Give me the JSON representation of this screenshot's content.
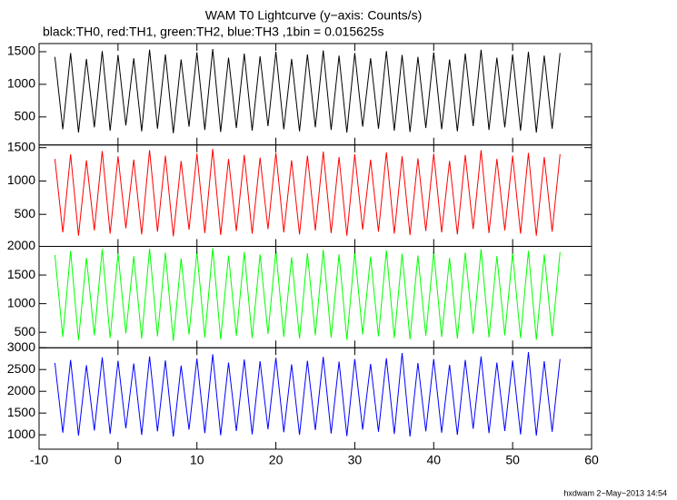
{
  "chart_data": {
    "type": "line",
    "title": "WAM T0 Lightcurve (y−axis: Counts/s)",
    "subtitle": "black:TH0, red:TH1, green:TH2, blue:TH3 ,1bin = 0.015625s",
    "x": [
      -8,
      -7,
      -6,
      -5,
      -4,
      -3,
      -2,
      -1,
      0,
      1,
      2,
      3,
      4,
      5,
      6,
      7,
      8,
      9,
      10,
      11,
      12,
      13,
      14,
      15,
      16,
      17,
      18,
      19,
      20,
      21,
      22,
      23,
      24,
      25,
      26,
      27,
      28,
      29,
      30,
      31,
      32,
      33,
      34,
      35,
      36,
      37,
      38,
      39,
      40,
      41,
      42,
      43,
      44,
      45,
      46,
      47,
      48,
      49,
      50,
      51,
      52,
      53,
      54,
      55,
      56
    ],
    "xlim": [
      -10,
      60
    ],
    "xticks": [
      -10,
      0,
      10,
      20,
      30,
      40,
      50,
      60
    ],
    "series": [
      {
        "color": "#000000",
        "ylim": [
          70,
          1625
        ],
        "yticks": [
          500,
          1000,
          1500
        ],
        "values": [
          1420,
          310,
          1480,
          260,
          1390,
          340,
          1510,
          290,
          1450,
          370,
          1400,
          280,
          1530,
          320,
          1460,
          250,
          1380,
          350,
          1490,
          300,
          1540,
          270,
          1410,
          330,
          1470,
          290,
          1430,
          360,
          1500,
          310,
          1390,
          280,
          1460,
          340,
          1520,
          300,
          1440,
          260,
          1480,
          350,
          1400,
          320,
          1510,
          290,
          1450,
          270,
          1420,
          330,
          1490,
          310,
          1380,
          280,
          1470,
          360,
          1530,
          300,
          1410,
          340,
          1460,
          290,
          1500,
          260,
          1440,
          320,
          1480
        ]
      },
      {
        "color": "#ff0000",
        "ylim": [
          20,
          1540
        ],
        "yticks": [
          500,
          1000,
          1500
        ],
        "values": [
          1330,
          230,
          1400,
          180,
          1310,
          260,
          1450,
          210,
          1370,
          290,
          1320,
          200,
          1460,
          240,
          1380,
          170,
          1300,
          270,
          1410,
          220,
          1480,
          190,
          1330,
          250,
          1390,
          210,
          1350,
          280,
          1420,
          230,
          1310,
          200,
          1380,
          260,
          1440,
          220,
          1360,
          180,
          1400,
          270,
          1320,
          240,
          1430,
          210,
          1370,
          190,
          1340,
          250,
          1410,
          230,
          1300,
          200,
          1390,
          280,
          1460,
          220,
          1330,
          260,
          1380,
          210,
          1420,
          180,
          1360,
          240,
          1400
        ]
      },
      {
        "color": "#00ff00",
        "ylim": [
          230,
          2000
        ],
        "yticks": [
          500,
          1000,
          1500,
          2000
        ],
        "values": [
          1850,
          420,
          1920,
          360,
          1800,
          450,
          1950,
          400,
          1880,
          480,
          1830,
          390,
          1960,
          430,
          1890,
          350,
          1790,
          460,
          1910,
          410,
          1970,
          380,
          1840,
          440,
          1900,
          400,
          1860,
          470,
          1930,
          420,
          1810,
          390,
          1880,
          450,
          1940,
          410,
          1860,
          370,
          1900,
          460,
          1820,
          430,
          1930,
          400,
          1870,
          380,
          1840,
          440,
          1910,
          420,
          1800,
          390,
          1890,
          470,
          1950,
          410,
          1830,
          450,
          1880,
          400,
          1920,
          370,
          1860,
          430,
          1900
        ]
      },
      {
        "color": "#0000ff",
        "ylim": [
          670,
          3000
        ],
        "yticks": [
          1000,
          1500,
          2000,
          2500,
          3000
        ],
        "values": [
          2650,
          1050,
          2720,
          980,
          2600,
          1100,
          2780,
          1020,
          2700,
          1150,
          2640,
          1000,
          2800,
          1080,
          2710,
          960,
          2590,
          1120,
          2750,
          1040,
          2850,
          990,
          2660,
          1090,
          2730,
          1010,
          2690,
          1130,
          2770,
          1060,
          2620,
          1000,
          2700,
          1110,
          2790,
          1030,
          2680,
          970,
          2740,
          1120,
          2630,
          1070,
          2760,
          1020,
          2880,
          960,
          2650,
          1080,
          2740,
          1050,
          2610,
          1000,
          2720,
          1140,
          2800,
          1040,
          2660,
          1090,
          2710,
          1010,
          2900,
          980,
          2690,
          1070,
          2740
        ]
      }
    ]
  },
  "footer": "hxdwam 2−May−2013 14:54"
}
